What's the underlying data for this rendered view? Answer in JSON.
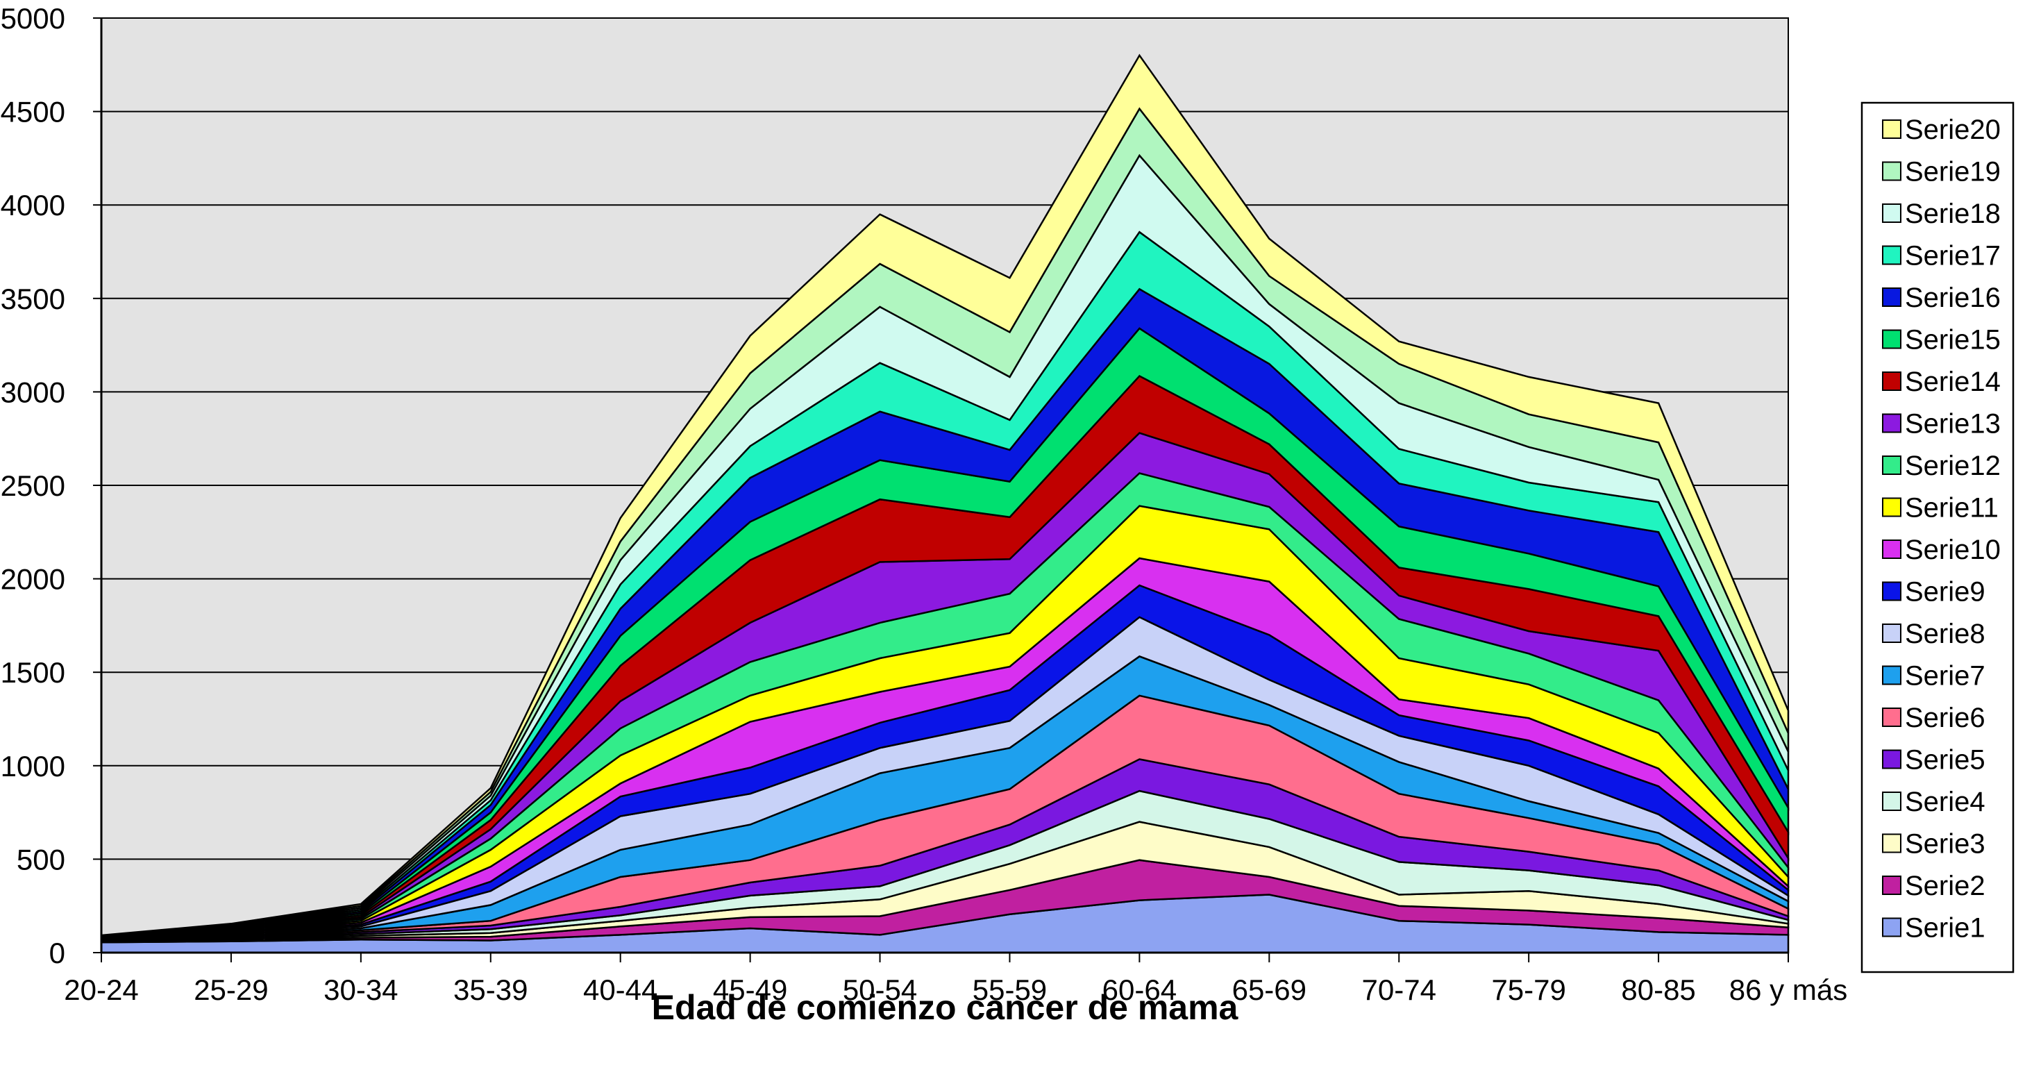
{
  "chart_data": {
    "type": "area",
    "stacked": true,
    "title": "",
    "xlabel": "Edad de comienzo cancer de mama",
    "ylabel": "",
    "ylim": [
      0,
      5000
    ],
    "yticks": [
      0,
      500,
      1000,
      1500,
      2000,
      2500,
      3000,
      3500,
      4000,
      4500,
      5000
    ],
    "grid": "horizontal",
    "legend_position": "right",
    "plot_background": "#e3e3e3",
    "categories": [
      "20-24",
      "25-29",
      "30-34",
      "35-39",
      "40-44",
      "45-49",
      "50-54",
      "55-59",
      "60-64",
      "65-69",
      "70-74",
      "75-79",
      "80-85",
      "86 y más"
    ],
    "series": [
      {
        "name": "Serie1",
        "color": "#8da3f2",
        "values": [
          55,
          60,
          70,
          65,
          95,
          130,
          95,
          205,
          280,
          310,
          170,
          150,
          110,
          95
        ]
      },
      {
        "name": "Serie2",
        "color": "#c020a0",
        "values": [
          2,
          5,
          10,
          20,
          45,
          60,
          100,
          130,
          215,
          95,
          80,
          75,
          75,
          40
        ]
      },
      {
        "name": "Serie3",
        "color": "#fefcc8",
        "values": [
          2,
          5,
          10,
          20,
          30,
          50,
          90,
          140,
          205,
          160,
          60,
          105,
          75,
          20
        ]
      },
      {
        "name": "Serie4",
        "color": "#d4f6e8",
        "values": [
          2,
          5,
          10,
          20,
          30,
          65,
          70,
          100,
          165,
          150,
          175,
          110,
          100,
          20
        ]
      },
      {
        "name": "Serie5",
        "color": "#7a18e0",
        "values": [
          2,
          5,
          10,
          20,
          45,
          70,
          110,
          110,
          170,
          185,
          135,
          100,
          80,
          20
        ]
      },
      {
        "name": "Serie6",
        "color": "#ff6e8e",
        "values": [
          2,
          5,
          10,
          25,
          160,
          120,
          245,
          190,
          340,
          315,
          230,
          180,
          140,
          40
        ]
      },
      {
        "name": "Serie7",
        "color": "#1ea0ee",
        "values": [
          2,
          5,
          10,
          85,
          145,
          190,
          250,
          220,
          210,
          110,
          170,
          90,
          60,
          40
        ]
      },
      {
        "name": "Serie8",
        "color": "#c8d2f8",
        "values": [
          2,
          5,
          10,
          75,
          180,
          165,
          135,
          145,
          210,
          135,
          140,
          190,
          100,
          30
        ]
      },
      {
        "name": "Serie9",
        "color": "#0a14e8",
        "values": [
          2,
          5,
          10,
          50,
          105,
          140,
          135,
          165,
          170,
          240,
          110,
          135,
          150,
          30
        ]
      },
      {
        "name": "Serie10",
        "color": "#d830f0",
        "values": [
          2,
          5,
          10,
          80,
          70,
          245,
          165,
          125,
          145,
          285,
          85,
          120,
          95,
          20
        ]
      },
      {
        "name": "Serie11",
        "color": "#ffff00",
        "values": [
          2,
          5,
          10,
          90,
          150,
          140,
          180,
          180,
          280,
          280,
          220,
          180,
          190,
          50
        ]
      },
      {
        "name": "Serie12",
        "color": "#33ec8a",
        "values": [
          2,
          5,
          10,
          60,
          145,
          180,
          190,
          210,
          175,
          120,
          210,
          165,
          175,
          50
        ]
      },
      {
        "name": "Serie13",
        "color": "#8c1ae0",
        "values": [
          2,
          5,
          10,
          50,
          145,
          210,
          325,
          185,
          215,
          175,
          125,
          120,
          265,
          50
        ]
      },
      {
        "name": "Serie14",
        "color": "#c00000",
        "values": [
          2,
          5,
          10,
          50,
          190,
          335,
          335,
          225,
          305,
          160,
          150,
          225,
          185,
          140
        ]
      },
      {
        "name": "Serie15",
        "color": "#00e070",
        "values": [
          2,
          5,
          10,
          40,
          160,
          205,
          210,
          190,
          255,
          165,
          220,
          190,
          160,
          130
        ]
      },
      {
        "name": "Serie16",
        "color": "#0818e0",
        "values": [
          2,
          5,
          10,
          40,
          145,
          235,
          260,
          170,
          210,
          265,
          230,
          230,
          290,
          100
        ]
      },
      {
        "name": "Serie17",
        "color": "#20f4c0",
        "values": [
          2,
          5,
          10,
          25,
          130,
          170,
          260,
          160,
          305,
          200,
          185,
          150,
          160,
          100
        ]
      },
      {
        "name": "Serie18",
        "color": "#d0faf0",
        "values": [
          2,
          5,
          10,
          25,
          130,
          200,
          300,
          230,
          410,
          120,
          245,
          190,
          120,
          100
        ]
      },
      {
        "name": "Serie19",
        "color": "#b0f6c0",
        "values": [
          2,
          5,
          10,
          20,
          100,
          190,
          230,
          240,
          250,
          150,
          210,
          175,
          200,
          100
        ]
      },
      {
        "name": "Serie20",
        "color": "#ffff99",
        "values": [
          2,
          5,
          10,
          20,
          125,
          200,
          265,
          290,
          285,
          200,
          120,
          200,
          210,
          120
        ]
      }
    ]
  }
}
